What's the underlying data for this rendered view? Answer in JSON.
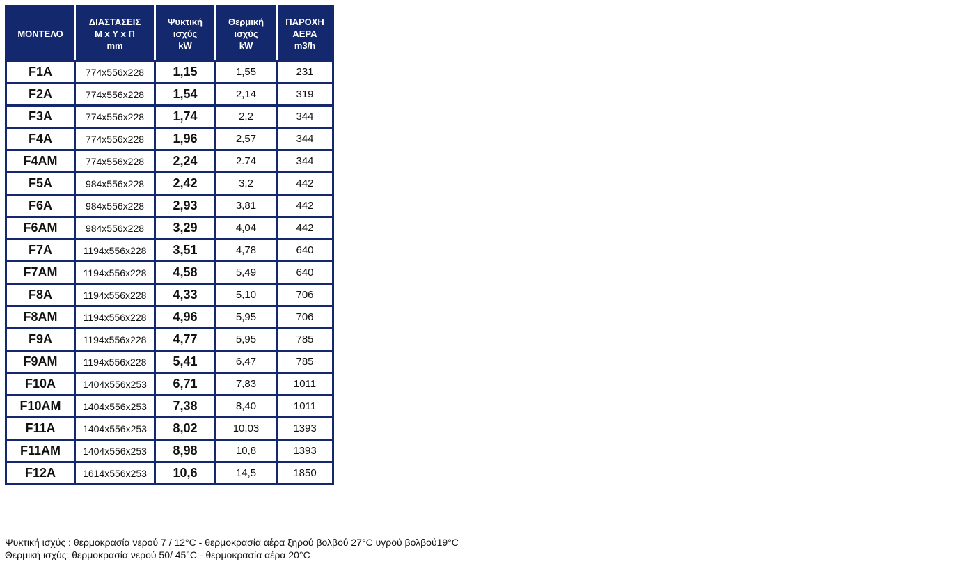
{
  "table": {
    "headers": [
      [
        "ΜΟΝΤΕΛΟ"
      ],
      [
        "ΔΙΑΣΤΑΣΕΙΣ",
        "Μ x Υ x Π",
        "mm"
      ],
      [
        "Ψυκτική",
        "ισχύς",
        "kW"
      ],
      [
        "Θερμική",
        "ισχύς",
        "kW"
      ],
      [
        "ΠΑΡΟΧΗ",
        "ΑΕΡΑ",
        "m3/h"
      ]
    ],
    "rows": [
      [
        "F1A",
        "774x556x228",
        "1,15",
        "1,55",
        "231"
      ],
      [
        "F2A",
        "774x556x228",
        "1,54",
        "2,14",
        "319"
      ],
      [
        "F3A",
        "774x556x228",
        "1,74",
        "2,2",
        "344"
      ],
      [
        "F4A",
        "774x556x228",
        "1,96",
        "2,57",
        "344"
      ],
      [
        "F4AM",
        "774x556x228",
        "2,24",
        "2.74",
        "344"
      ],
      [
        "F5A",
        "984x556x228",
        "2,42",
        "3,2",
        "442"
      ],
      [
        "F6A",
        "984x556x228",
        "2,93",
        "3,81",
        "442"
      ],
      [
        "F6AM",
        "984x556x228",
        "3,29",
        "4,04",
        "442"
      ],
      [
        "F7A",
        "1194x556x228",
        "3,51",
        "4,78",
        "640"
      ],
      [
        "F7AM",
        "1194x556x228",
        "4,58",
        "5,49",
        "640"
      ],
      [
        "F8A",
        "1194x556x228",
        "4,33",
        "5,10",
        "706"
      ],
      [
        "F8AM",
        "1194x556x228",
        "4,96",
        "5,95",
        "706"
      ],
      [
        "F9A",
        "1194x556x228",
        "4,77",
        "5,95",
        "785"
      ],
      [
        "F9AM",
        "1194x556x228",
        "5,41",
        "6,47",
        "785"
      ],
      [
        "F10A",
        "1404x556x253",
        "6,71",
        "7,83",
        "1011"
      ],
      [
        "F10AM",
        "1404x556x253",
        "7,38",
        "8,40",
        "1011"
      ],
      [
        "F11A",
        "1404x556x253",
        "8,02",
        "10,03",
        "1393"
      ],
      [
        "F11AM",
        "1404x556x253",
        "8,98",
        "10,8",
        "1393"
      ],
      [
        "F12A",
        "1614x556x253",
        "10,6",
        "14,5",
        "1850"
      ]
    ]
  },
  "notes": [
    "Ψυκτική ισχύς : θερμοκρασία νερού 7 / 12°C - θερμοκρασία αέρα ξηρού βολβού 27°C υγρού βολβού19°C",
    "Θερμική ισχύς: θερμοκρασία νερού 50/ 45°C - θερμοκρασία αέρα  20°C"
  ],
  "colors": {
    "header_bg": "#14286e",
    "border": "#14286e"
  }
}
